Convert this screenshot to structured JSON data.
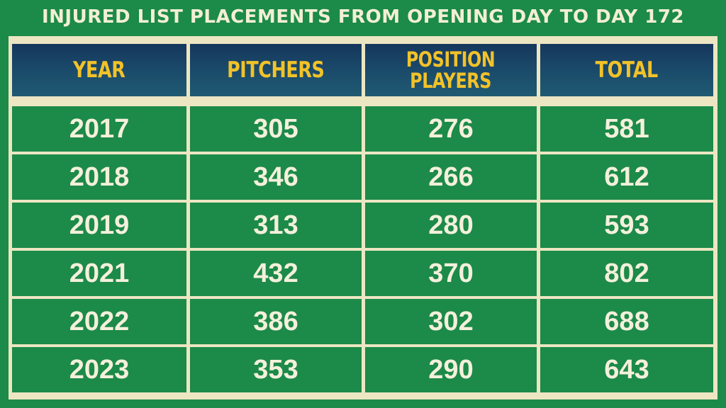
{
  "title": "INJURED LIST PLACEMENTS FROM OPENING DAY TO DAY 172",
  "colors": {
    "background": "#1c8a49",
    "header_fill": "#1b4c6b",
    "header_text": "#f2c228",
    "cell_text": "#f4f0dc",
    "grid_lines": "#ece6c3"
  },
  "chart_data": {
    "type": "table",
    "title": "INJURED LIST PLACEMENTS FROM OPENING DAY TO DAY 172",
    "columns": [
      "YEAR",
      "PITCHERS",
      "POSITION PLAYERS",
      "TOTAL"
    ],
    "header_lines": [
      [
        "YEAR"
      ],
      [
        "PITCHERS"
      ],
      [
        "POSITION",
        "PLAYERS"
      ],
      [
        "TOTAL"
      ]
    ],
    "rows": [
      [
        "2017",
        "305",
        "276",
        "581"
      ],
      [
        "2018",
        "346",
        "266",
        "612"
      ],
      [
        "2019",
        "313",
        "280",
        "593"
      ],
      [
        "2021",
        "432",
        "370",
        "802"
      ],
      [
        "2022",
        "386",
        "302",
        "688"
      ],
      [
        "2023",
        "353",
        "290",
        "643"
      ]
    ]
  }
}
